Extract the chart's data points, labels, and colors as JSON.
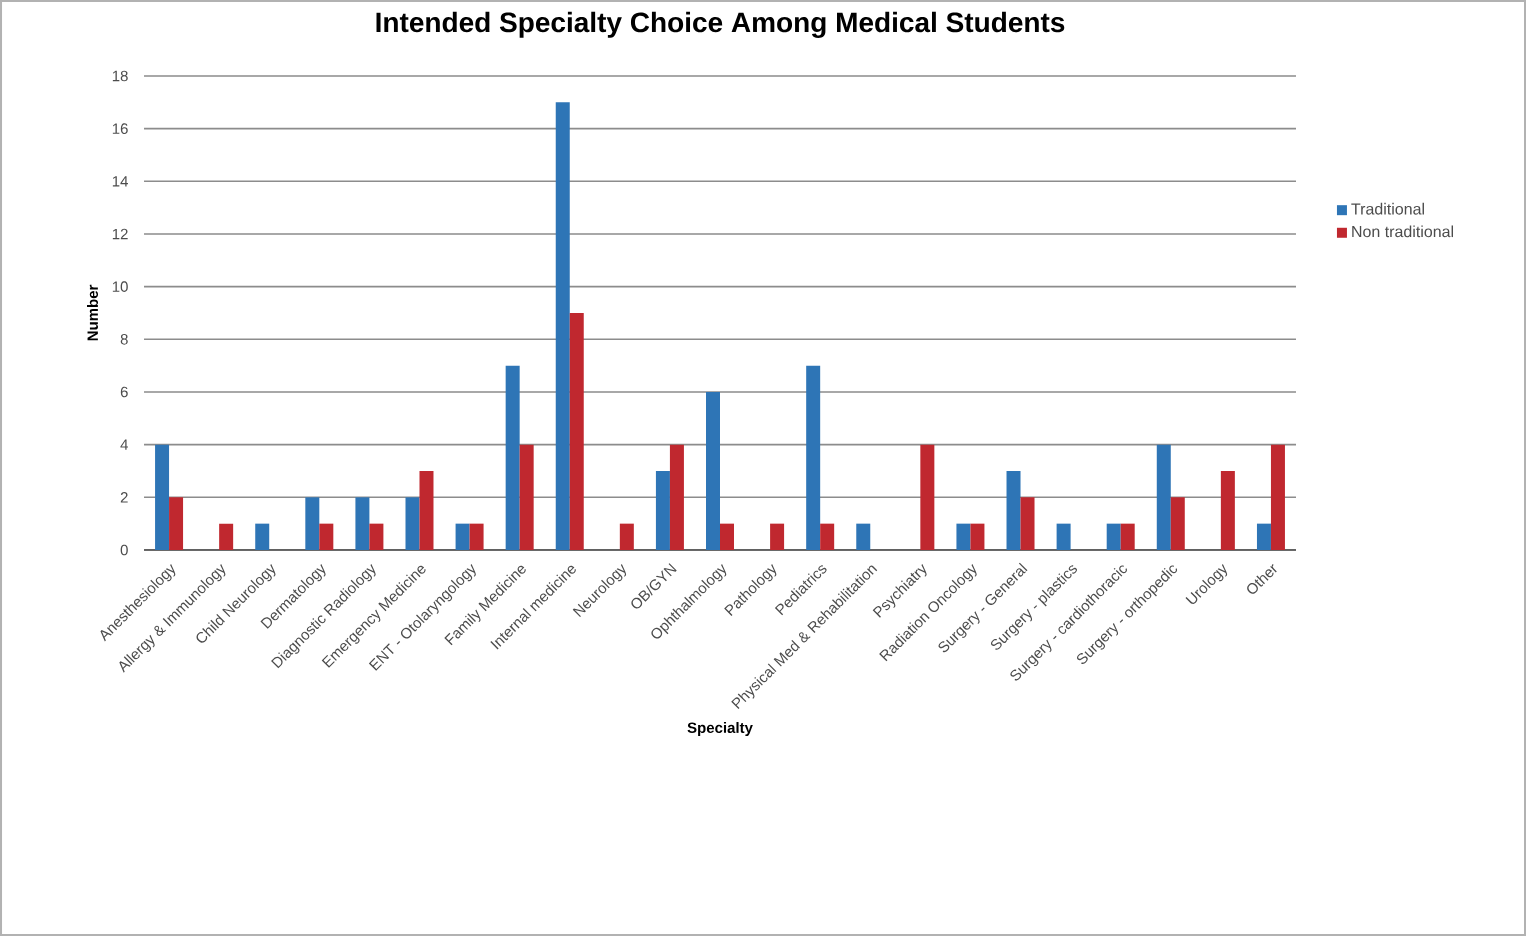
{
  "chart_data": {
    "type": "bar",
    "title": "Intended Specialty Choice Among Medical Students",
    "xlabel": "Specialty",
    "ylabel": "Number",
    "categories": [
      "Anesthesiology",
      "Allergy & Immunology",
      "Child Neurology",
      "Dermatology",
      "Diagnostic Radiology",
      "Emergency Medicine",
      "ENT - Otolaryngology",
      "Family Medicine",
      "Internal medicine",
      "Neurology",
      "OB/GYN",
      "Ophthalmology",
      "Pathology",
      "Pediatrics",
      "Physical Med & Rehabilitation",
      "Psychiatry",
      "Radiation Oncology",
      "Surgery - General",
      "Surgery - plastics",
      "Surgery - cardiothoracic",
      "Surgery - orthopedic",
      "Urology",
      "Other"
    ],
    "series": [
      {
        "name": "Traditional",
        "color": "#2e75b6",
        "values": [
          4,
          0,
          1,
          2,
          2,
          2,
          1,
          7,
          17,
          0,
          3,
          6,
          0,
          7,
          1,
          0,
          1,
          3,
          1,
          1,
          4,
          0,
          1
        ]
      },
      {
        "name": "Non traditional",
        "color": "#c0282f",
        "values": [
          2,
          1,
          0,
          1,
          1,
          3,
          1,
          4,
          9,
          1,
          4,
          1,
          1,
          1,
          0,
          4,
          1,
          2,
          0,
          1,
          2,
          3,
          4
        ]
      }
    ],
    "ylim": [
      0,
      18
    ],
    "yticks": [
      0,
      2,
      4,
      6,
      8,
      10,
      12,
      14,
      16,
      18
    ],
    "grid": "y",
    "legend": "right"
  }
}
